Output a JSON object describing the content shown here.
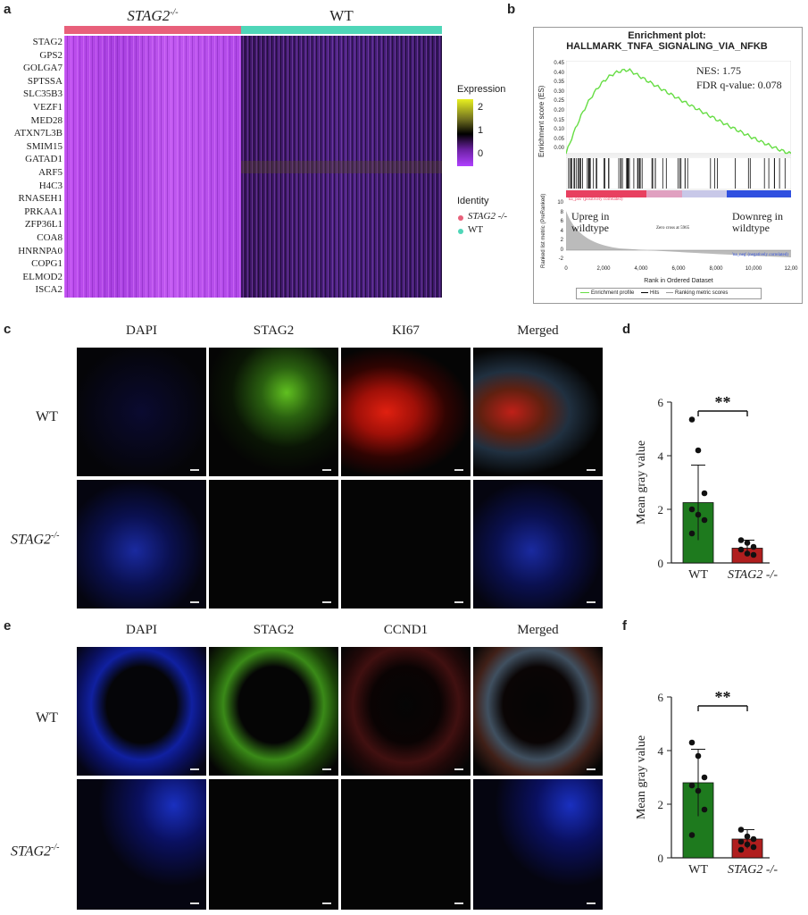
{
  "panel_a": {
    "label": "a",
    "group_stag2": "STAG2",
    "group_stag2_sup": "-/-",
    "group_wt": "WT",
    "genes": [
      "STAG2",
      "GPS2",
      "GOLGA7",
      "SPTSSA",
      "SLC35B3",
      "VEZF1",
      "MED28",
      "ATXN7L3B",
      "SMIM15",
      "GATAD1",
      "ARF5",
      "H4C3",
      "RNASEH1",
      "PRKAA1",
      "ZFP36L1",
      "COA8",
      "HNRNPA0",
      "COPG1",
      "ELMOD2",
      "ISCA2"
    ],
    "legend_expression_title": "Expression",
    "legend_ticks": [
      "2",
      "1",
      "0"
    ],
    "identity_title": "Identity",
    "identity_items": [
      "STAG2 -/-",
      "WT"
    ],
    "colors": {
      "stag2": "#e8607a",
      "wt": "#4fd6b8",
      "high": "#e8f020",
      "mid": "#000000",
      "low": "#b040ff"
    }
  },
  "panel_b": {
    "label": "b",
    "title_line1": "Enrichment plot:",
    "title_line2": "HALLMARK_TNFA_SIGNALING_VIA_NFKB",
    "nes": "NES: 1.75",
    "fdr": "FDR q-value: 0.078",
    "ylabel_es": "Enrichment score (ES)",
    "es_ticks": [
      "0.45",
      "0.40",
      "0.35",
      "0.30",
      "0.25",
      "0.20",
      "0.15",
      "0.10",
      "0.05",
      "0.00"
    ],
    "ylabel_rank": "Ranked list metric (PreRanked)",
    "rank_ticks": [
      "10",
      "8",
      "6",
      "4",
      "2",
      "0",
      "-2"
    ],
    "upreg": "Upreg in wildtype",
    "downreg": "Downreg in wildtype",
    "zero_cross": "Zero cross at 5965",
    "na_pos": "'na_pos' (positively correlated)",
    "na_neg": "'na_neg' (negatively correlated)",
    "xlabel": "Rank in Ordered Dataset",
    "x_ticks": [
      "0",
      "2,000",
      "4,000",
      "6,000",
      "8,000",
      "10,000",
      "12,00"
    ],
    "legend": [
      "Enrichment profile",
      "Hits",
      "Ranking metric scores"
    ],
    "colors": {
      "profile": "#66dd44"
    }
  },
  "panel_c": {
    "label": "c",
    "columns": [
      "DAPI",
      "STAG2",
      "KI67",
      "Merged"
    ],
    "rows": [
      "WT",
      "STAG2"
    ],
    "row_sup": "-/-"
  },
  "panel_d": {
    "label": "d",
    "significance": "**",
    "chart_data": {
      "type": "bar",
      "categories": [
        "WT",
        "STAG2 -/-"
      ],
      "values": [
        2.25,
        0.55
      ],
      "error": [
        1.4,
        0.3
      ],
      "points": [
        [
          5.35,
          4.2,
          2.6,
          2.0,
          1.8,
          1.6,
          1.1
        ],
        [
          0.85,
          0.75,
          0.6,
          0.5,
          0.35,
          0.3
        ]
      ],
      "ylabel": "Mean gray value",
      "yticks": [
        "0",
        "2",
        "4",
        "6"
      ],
      "ylim": [
        0,
        6
      ],
      "colors": [
        "#1e7a1e",
        "#b01e1e"
      ]
    }
  },
  "panel_e": {
    "label": "e",
    "columns": [
      "DAPI",
      "STAG2",
      "CCND1",
      "Merged"
    ],
    "rows": [
      "WT",
      "STAG2"
    ],
    "row_sup": "-/-"
  },
  "panel_f": {
    "label": "f",
    "significance": "**",
    "chart_data": {
      "type": "bar",
      "categories": [
        "WT",
        "STAG2 -/-"
      ],
      "values": [
        2.8,
        0.7
      ],
      "error": [
        1.25,
        0.35
      ],
      "points": [
        [
          4.3,
          3.8,
          3.0,
          2.7,
          2.5,
          1.8,
          0.85
        ],
        [
          1.05,
          0.8,
          0.7,
          0.6,
          0.5,
          0.4,
          0.3
        ]
      ],
      "ylabel": "Mean gray value",
      "yticks": [
        "0",
        "2",
        "4",
        "6"
      ],
      "ylim": [
        0,
        6
      ],
      "colors": [
        "#1e7a1e",
        "#b01e1e"
      ]
    }
  }
}
